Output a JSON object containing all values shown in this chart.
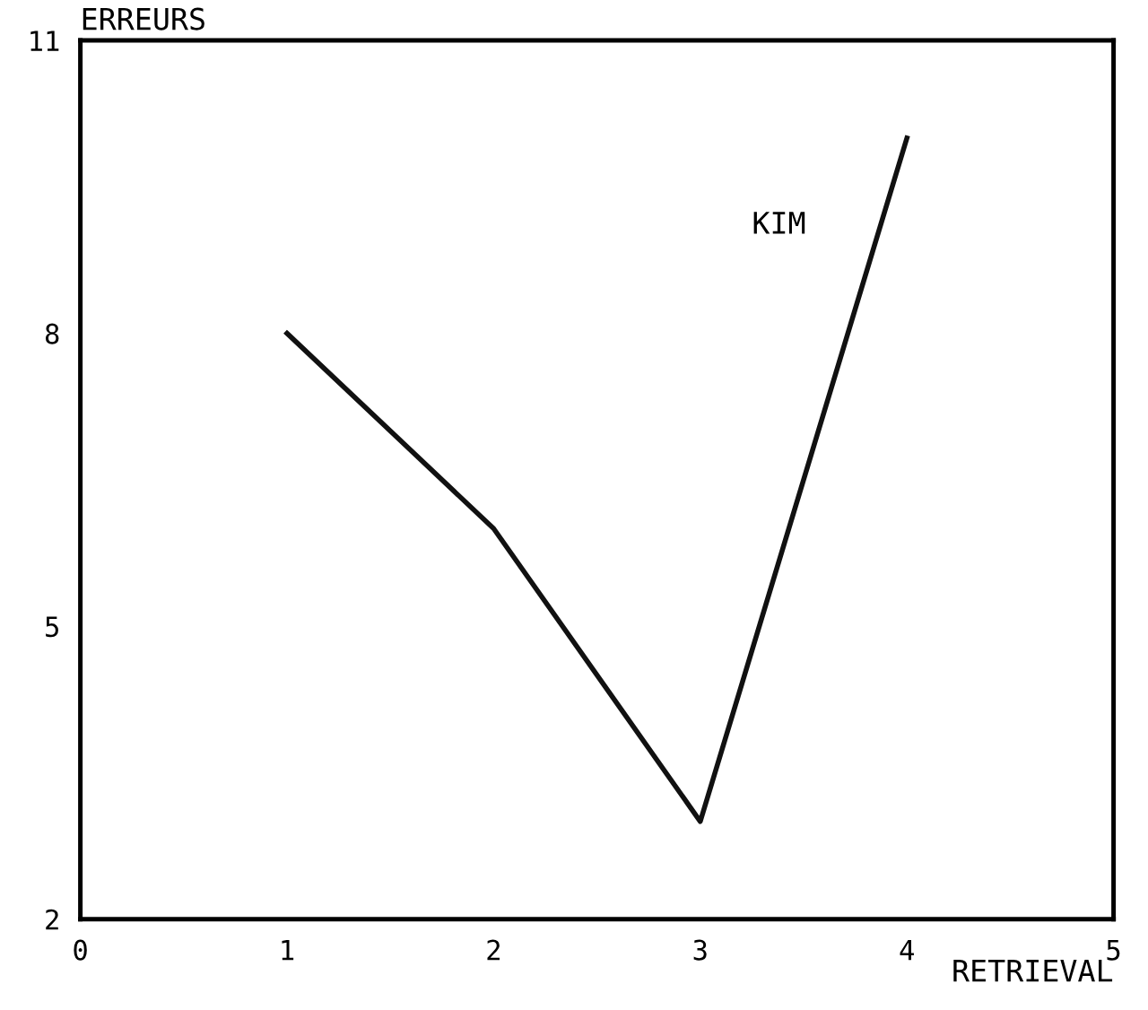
{
  "chart_data": {
    "type": "line",
    "xlabel": "RETRIEVAL",
    "ylabel": "ERREURS",
    "x": [
      1,
      2,
      3,
      4
    ],
    "series": [
      {
        "color": "#111111",
        "values": [
          8,
          6,
          3,
          10
        ]
      }
    ],
    "annotations": [
      "KIM"
    ],
    "xlim": [
      0,
      5
    ],
    "ylim": [
      2,
      11
    ],
    "xticks": [
      0,
      1,
      2,
      3,
      4,
      5
    ],
    "yticks": [
      2,
      5,
      8,
      11
    ],
    "grid": false,
    "legend": false,
    "marker": "none",
    "line_style": "solid"
  }
}
